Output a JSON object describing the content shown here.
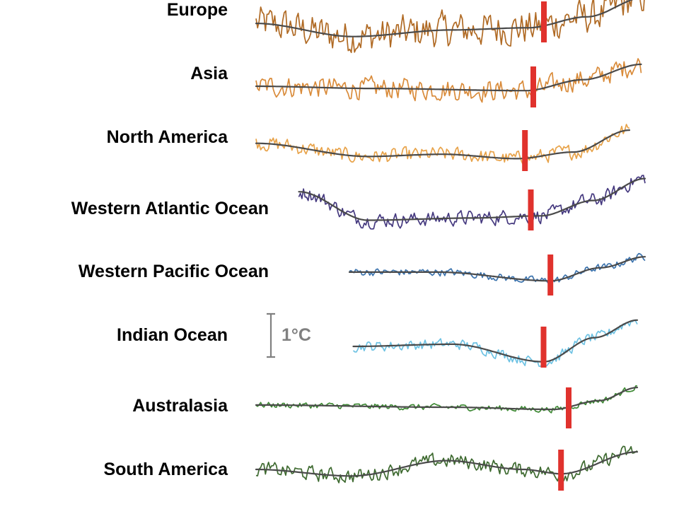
{
  "chart_data": {
    "type": "line",
    "title": "",
    "xlabel": "",
    "ylabel": "",
    "scale_bar": "1°C",
    "smooth_line_color": "#4a4a4a",
    "onset_marker_color": "#e0322d",
    "series": [
      {
        "name": "Europe",
        "color": "#b06a24",
        "start": 0.0,
        "end": 1.0,
        "onset": 0.74,
        "noise": 1.3,
        "trend": [
          [
            0,
            -0.05
          ],
          [
            0.25,
            -0.35
          ],
          [
            0.5,
            -0.2
          ],
          [
            0.7,
            -0.15
          ],
          [
            0.85,
            0.1
          ],
          [
            1,
            0.55
          ]
        ]
      },
      {
        "name": "Asia",
        "color": "#d98b3a",
        "start": 0.0,
        "end": 0.99,
        "onset": 0.72,
        "noise": 0.8,
        "trend": [
          [
            0,
            0
          ],
          [
            0.3,
            -0.05
          ],
          [
            0.7,
            -0.1
          ],
          [
            0.85,
            0.15
          ],
          [
            1,
            0.5
          ]
        ]
      },
      {
        "name": "North America",
        "color": "#e8a34a",
        "start": 0.0,
        "end": 0.96,
        "onset": 0.72,
        "noise": 0.55,
        "trend": [
          [
            0,
            0.15
          ],
          [
            0.3,
            -0.15
          ],
          [
            0.5,
            -0.1
          ],
          [
            0.7,
            -0.2
          ],
          [
            0.85,
            -0.05
          ],
          [
            1,
            0.45
          ]
        ]
      },
      {
        "name": "Western Atlantic Ocean",
        "color": "#45397f",
        "start": 0.11,
        "end": 1.0,
        "onset": 0.67,
        "noise": 0.55,
        "trend": [
          [
            0,
            0.4
          ],
          [
            0.2,
            -0.25
          ],
          [
            0.5,
            -0.2
          ],
          [
            0.7,
            -0.15
          ],
          [
            0.85,
            0.2
          ],
          [
            1,
            0.7
          ]
        ]
      },
      {
        "name": "Western Pacific Ocean",
        "color": "#3d74ae",
        "start": 0.24,
        "end": 1.0,
        "onset": 0.68,
        "noise": 0.28,
        "trend": [
          [
            0,
            0.05
          ],
          [
            0.3,
            0.05
          ],
          [
            0.68,
            -0.15
          ],
          [
            0.85,
            0.15
          ],
          [
            1,
            0.4
          ]
        ]
      },
      {
        "name": "Indian Ocean",
        "color": "#6ec2e3",
        "start": 0.25,
        "end": 0.98,
        "onset": 0.67,
        "noise": 0.4,
        "trend": [
          [
            0,
            0
          ],
          [
            0.35,
            0.05
          ],
          [
            0.67,
            -0.35
          ],
          [
            0.85,
            0.2
          ],
          [
            1,
            0.6
          ]
        ]
      },
      {
        "name": "Australasia",
        "color": "#3f8a35",
        "start": 0.0,
        "end": 0.98,
        "onset": 0.82,
        "noise": 0.22,
        "trend": [
          [
            0,
            0.05
          ],
          [
            0.5,
            0
          ],
          [
            0.78,
            -0.05
          ],
          [
            0.9,
            0.15
          ],
          [
            1,
            0.45
          ]
        ]
      },
      {
        "name": "South America",
        "color": "#3e6a30",
        "start": 0.0,
        "end": 0.98,
        "onset": 0.8,
        "noise": 0.55,
        "trend": [
          [
            0,
            0
          ],
          [
            0.25,
            -0.15
          ],
          [
            0.5,
            0.2
          ],
          [
            0.7,
            0
          ],
          [
            0.8,
            -0.1
          ],
          [
            1,
            0.4
          ]
        ]
      }
    ]
  }
}
